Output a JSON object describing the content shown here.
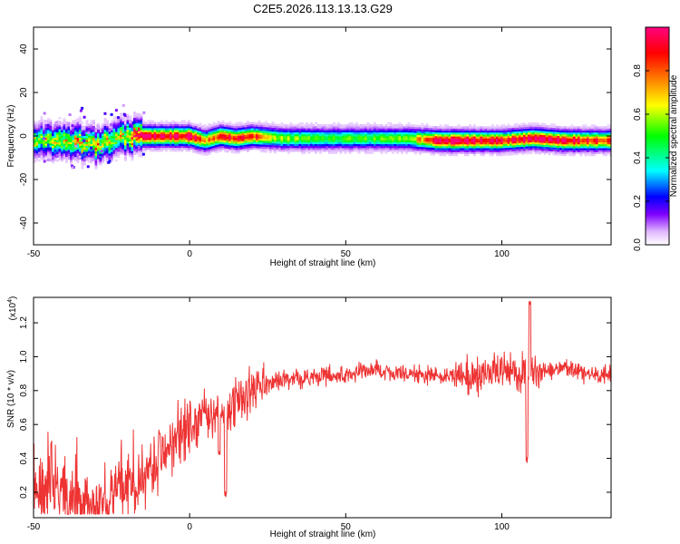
{
  "title": "C2E5.2026.113.13.13.G29",
  "chart_data": [
    {
      "type": "heatmap",
      "xlabel": "Height of straight line (km)",
      "ylabel": "Frequency (Hz)",
      "xlim": [
        -50,
        135
      ],
      "ylim": [
        -50,
        50
      ],
      "xticks": [
        -50,
        0,
        50,
        100
      ],
      "yticks": [
        -40,
        -20,
        0,
        20,
        40
      ],
      "colorbar": {
        "label": "Normalized spectral amplitude",
        "range": [
          0.0,
          1.0
        ],
        "ticks": [
          "0.0",
          "0.2",
          "0.4",
          "0.6",
          "0.8"
        ],
        "tick_values": [
          0.0,
          0.2,
          0.4,
          0.6,
          0.8
        ],
        "colormap": [
          "#ffffff",
          "#e0b8ff",
          "#8000ff",
          "#0000ff",
          "#00ffff",
          "#00ff00",
          "#ffff00",
          "#ff8000",
          "#ff0000",
          "#ff0080"
        ]
      },
      "ridge": {
        "x": [
          -50,
          -45,
          -40,
          -35,
          -30,
          -25,
          -20,
          -15,
          -10,
          -5,
          0,
          5,
          10,
          15,
          20,
          30,
          40,
          50,
          60,
          70,
          80,
          90,
          100,
          110,
          120,
          135
        ],
        "frequency": [
          -1,
          -2,
          -3,
          -3,
          -4,
          -2,
          0,
          0,
          0,
          0,
          0,
          -2,
          0,
          -1,
          0,
          -1,
          -1,
          -1,
          -1,
          -1,
          -2,
          -2,
          -2,
          -1,
          -2,
          -2
        ],
        "peak_amplitude": [
          0.45,
          0.5,
          0.55,
          0.55,
          0.6,
          0.5,
          0.55,
          0.9,
          0.95,
          0.9,
          0.95,
          0.7,
          0.85,
          0.85,
          0.8,
          0.5,
          0.45,
          0.45,
          0.45,
          0.5,
          0.95,
          0.95,
          0.85,
          0.9,
          0.9,
          0.8
        ]
      }
    },
    {
      "type": "line",
      "xlabel": "Height of straight line (km)",
      "ylabel": "SNR (10 * v/v)",
      "yscale_label": "(x10",
      "yscale_exp": "4",
      "xlim": [
        -50,
        135
      ],
      "ylim": [
        0.05,
        1.35
      ],
      "xticks": [
        -50,
        0,
        50,
        100
      ],
      "yticks": [
        0.2,
        0.4,
        0.6,
        0.8,
        1.0,
        1.2
      ],
      "ytick_labels": [
        "0.2",
        "0.4",
        "0.6",
        "0.8",
        "1.0",
        "1.2"
      ],
      "color": "#ee3333",
      "trend": {
        "x": [
          -50,
          -45,
          -40,
          -35,
          -30,
          -25,
          -20,
          -15,
          -10,
          -5,
          0,
          5,
          10,
          15,
          20,
          25,
          30,
          40,
          50,
          60,
          70,
          80,
          90,
          100,
          110,
          120,
          130,
          135
        ],
        "snr": [
          0.2,
          0.22,
          0.18,
          0.12,
          0.12,
          0.15,
          0.2,
          0.3,
          0.42,
          0.5,
          0.58,
          0.65,
          0.68,
          0.72,
          0.8,
          0.85,
          0.86,
          0.88,
          0.9,
          0.92,
          0.9,
          0.88,
          0.89,
          0.92,
          0.9,
          0.93,
          0.88,
          0.9
        ]
      },
      "dips": [
        {
          "x": 9.5,
          "snr": 0.4
        },
        {
          "x": 11.5,
          "snr": 0.17
        },
        {
          "x": 108,
          "snr": 0.37
        }
      ],
      "spikes": [
        {
          "x": 109,
          "snr": 1.33
        }
      ]
    }
  ]
}
